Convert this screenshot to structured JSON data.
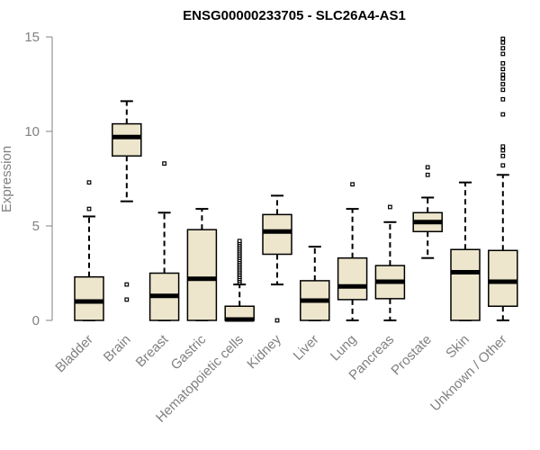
{
  "chart_data": {
    "type": "box",
    "title": "ENSG00000233705 - SLC26A4-AS1",
    "xlabel": "",
    "ylabel": "Expression",
    "ylim": [
      0,
      15
    ],
    "yticks": [
      0,
      5,
      10,
      15
    ],
    "colors": {
      "box_fill": "#ede6cc",
      "stroke": "#000000",
      "axis": "#808080"
    },
    "categories": [
      "Bladder",
      "Brain",
      "Breast",
      "Gastric",
      "Hematopoietic cells",
      "Kidney",
      "Liver",
      "Lung",
      "Pancreas",
      "Prostate",
      "Skin",
      "Unknown / Other"
    ],
    "boxes": [
      {
        "name": "Bladder",
        "whisker_low": 0,
        "q1": 0,
        "median": 1.0,
        "q3": 2.3,
        "whisker_high": 5.5,
        "outliers": [
          5.9,
          7.3
        ]
      },
      {
        "name": "Brain",
        "whisker_low": 6.3,
        "q1": 8.7,
        "median": 9.7,
        "q3": 10.4,
        "whisker_high": 11.6,
        "outliers": [
          1.1,
          1.9
        ]
      },
      {
        "name": "Breast",
        "whisker_low": 0,
        "q1": 0,
        "median": 1.3,
        "q3": 2.5,
        "whisker_high": 5.7,
        "outliers": [
          8.3
        ]
      },
      {
        "name": "Gastric",
        "whisker_low": 0,
        "q1": 0,
        "median": 2.2,
        "q3": 4.8,
        "whisker_high": 5.9,
        "outliers": []
      },
      {
        "name": "Hematopoietic cells",
        "whisker_low": 0,
        "q1": 0,
        "median": 0.05,
        "q3": 0.75,
        "whisker_high": 1.9,
        "outliers": [
          2.0,
          2.1,
          2.2,
          2.3,
          2.4,
          2.5,
          2.6,
          2.7,
          2.8,
          2.9,
          3.0,
          3.1,
          3.2,
          3.3,
          3.4,
          3.5,
          3.6,
          3.7,
          3.8,
          3.9,
          4.0,
          4.1,
          4.2
        ]
      },
      {
        "name": "Kidney",
        "whisker_low": 1.9,
        "q1": 3.5,
        "median": 4.7,
        "q3": 5.6,
        "whisker_high": 6.6,
        "outliers": [
          0
        ]
      },
      {
        "name": "Liver",
        "whisker_low": 0,
        "q1": 0,
        "median": 1.05,
        "q3": 2.1,
        "whisker_high": 3.9,
        "outliers": []
      },
      {
        "name": "Lung",
        "whisker_low": 0,
        "q1": 1.1,
        "median": 1.8,
        "q3": 3.3,
        "whisker_high": 5.9,
        "outliers": [
          7.2
        ]
      },
      {
        "name": "Pancreas",
        "whisker_low": 0,
        "q1": 1.15,
        "median": 2.05,
        "q3": 2.9,
        "whisker_high": 5.2,
        "outliers": [
          6.0
        ]
      },
      {
        "name": "Prostate",
        "whisker_low": 3.3,
        "q1": 4.7,
        "median": 5.2,
        "q3": 5.7,
        "whisker_high": 6.5,
        "outliers": [
          7.7,
          8.1
        ]
      },
      {
        "name": "Skin",
        "whisker_low": 0,
        "q1": 0,
        "median": 2.55,
        "q3": 3.75,
        "whisker_high": 7.3,
        "outliers": []
      },
      {
        "name": "Unknown / Other",
        "whisker_low": 0,
        "q1": 0.75,
        "median": 2.05,
        "q3": 3.7,
        "whisker_high": 7.7,
        "outliers": [
          8.2,
          8.7,
          9.0,
          9.2,
          10.9,
          11.7,
          12.2,
          12.5,
          12.8,
          13.0,
          13.3,
          13.6,
          14.1,
          14.4,
          14.7,
          14.9
        ]
      }
    ]
  }
}
